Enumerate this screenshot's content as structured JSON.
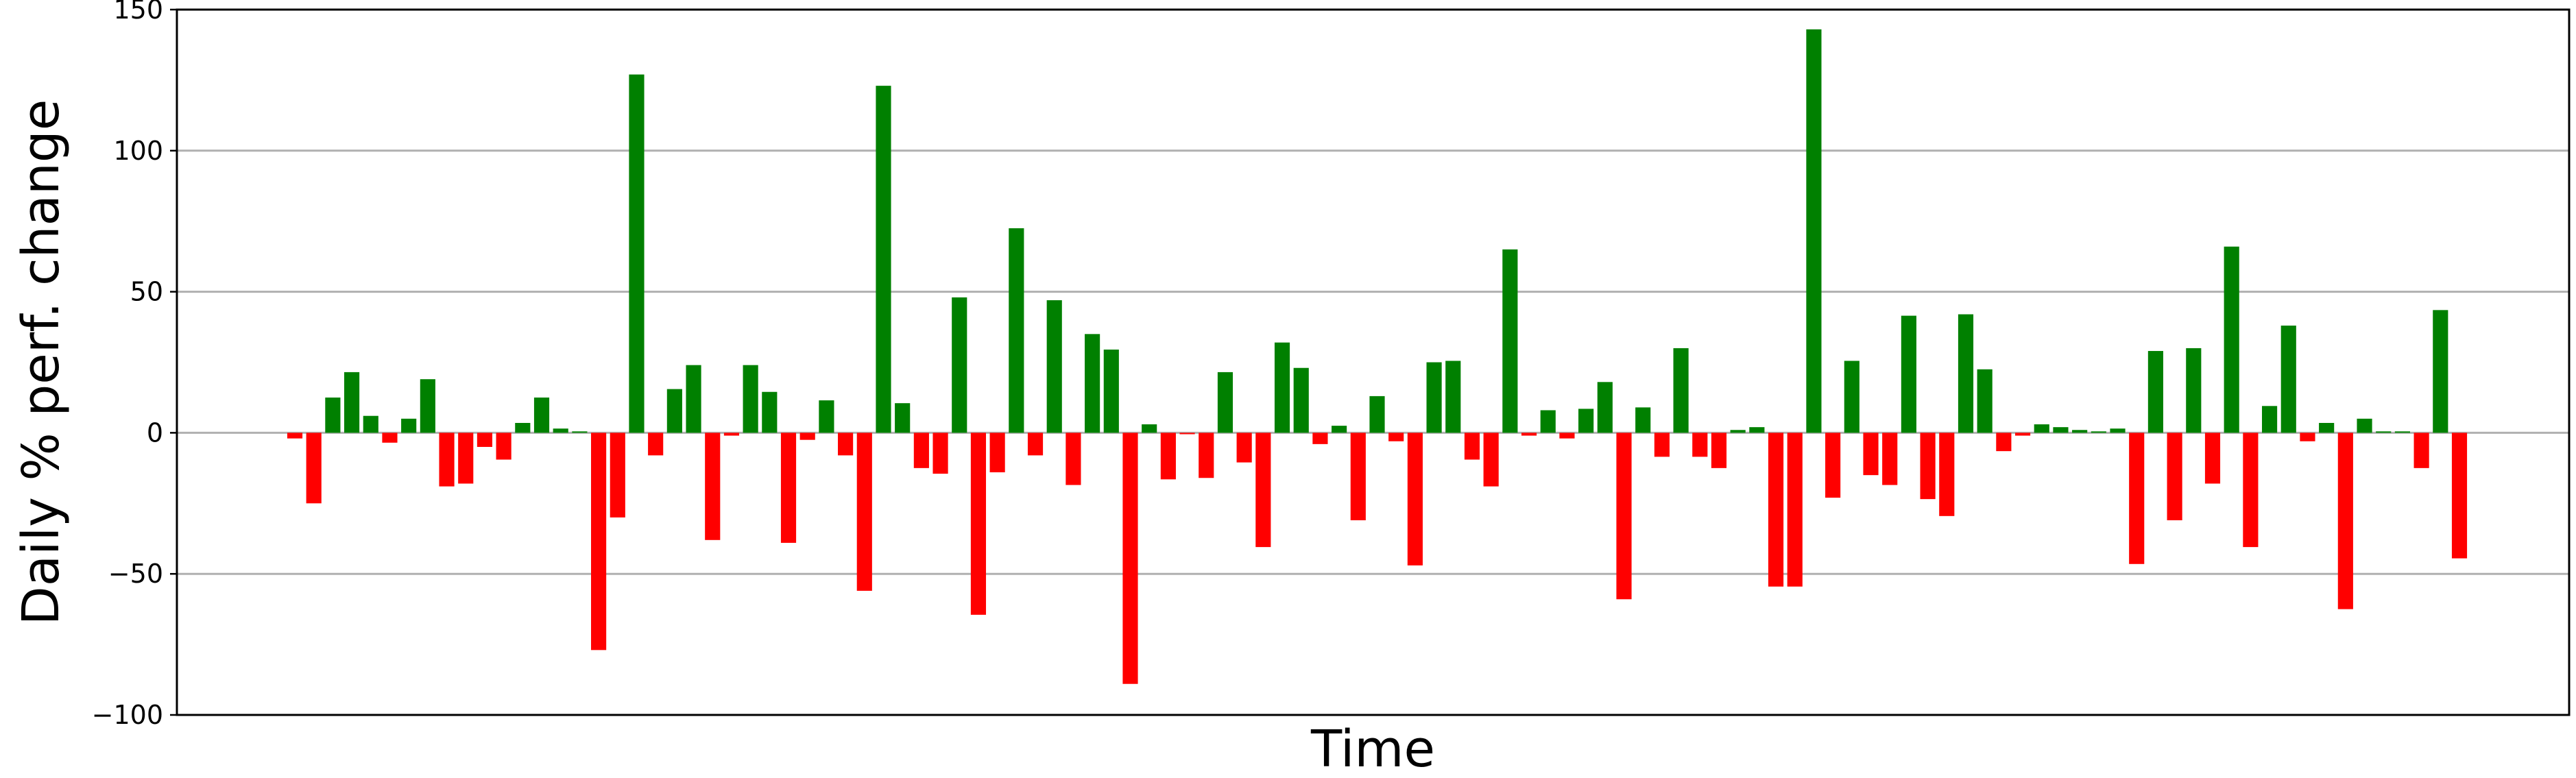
{
  "chart_data": {
    "type": "bar",
    "xlabel": "Time",
    "ylabel": "Daily % perf. change",
    "ylim": [
      -100,
      150
    ],
    "yticks": [
      -100,
      -50,
      0,
      50,
      100,
      150
    ],
    "grid": "horizontal",
    "colors": {
      "positive": "#008000",
      "negative": "#ff0000",
      "grid": "#b0b0b0",
      "axes": "#000000"
    },
    "values": [
      -2,
      -25,
      12.5,
      21.5,
      6,
      -3.5,
      5,
      19,
      -19,
      -18,
      -5,
      -9.5,
      3.5,
      12.5,
      1.5,
      0.5,
      -77,
      -30,
      127,
      -8,
      15.5,
      24,
      -38,
      -1,
      24,
      14.5,
      -39,
      -2.5,
      11.5,
      -8,
      -56,
      123,
      10.5,
      -12.5,
      -14.5,
      48,
      -64.5,
      -14,
      72.5,
      -8,
      47,
      -18.5,
      35,
      29.5,
      -89,
      3,
      -16.5,
      -0.5,
      -16,
      21.5,
      -10.5,
      -40.5,
      32,
      23,
      -4,
      2.5,
      -31,
      13,
      -3,
      -47,
      25,
      25.5,
      -9.5,
      -19,
      65,
      -1,
      8,
      -2,
      8.5,
      18,
      -59,
      9,
      -8.5,
      30,
      -8.5,
      -12.5,
      1,
      2,
      -54.5,
      -54.5,
      143,
      -23,
      25.5,
      -15,
      -18.5,
      41.5,
      -23.5,
      -29.5,
      42,
      22.5,
      -6.5,
      -1,
      3,
      2,
      1,
      0.5,
      1.5,
      -46.5,
      29,
      -31,
      30,
      -18,
      66,
      -40.5,
      9.5,
      38,
      -3,
      3.5,
      -62.5,
      5,
      0.5,
      0.5,
      -12.5,
      43.5,
      -44.5
    ]
  }
}
